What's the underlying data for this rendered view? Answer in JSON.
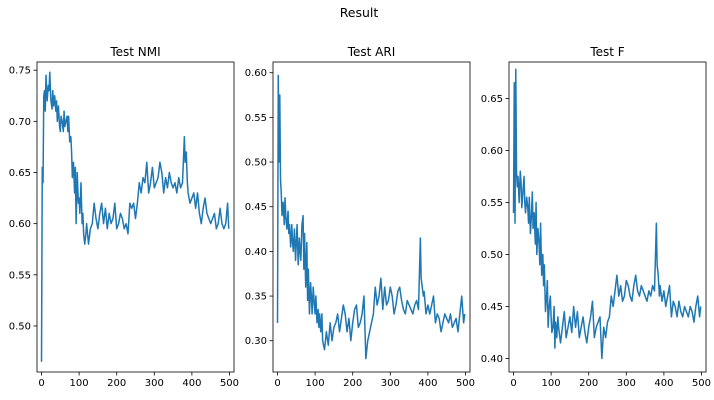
{
  "figure": {
    "suptitle": "Result"
  },
  "chart_data": [
    {
      "type": "line",
      "title": "Test NMI",
      "xlabel": "",
      "ylabel": "",
      "xlim": [
        -12,
        512
      ],
      "ylim": [
        0.455,
        0.758
      ],
      "xticks": [
        0,
        100,
        200,
        300,
        400,
        500
      ],
      "yticks": [
        0.5,
        0.55,
        0.6,
        0.65,
        0.7,
        0.75
      ],
      "ytick_decimals": 2,
      "grid": false,
      "legend": "none",
      "series": [
        {
          "color": "#1f77b4",
          "x": [
            0,
            2,
            4,
            6,
            8,
            10,
            12,
            15,
            18,
            20,
            22,
            25,
            28,
            30,
            32,
            35,
            38,
            40,
            42,
            45,
            48,
            50,
            52,
            55,
            58,
            60,
            62,
            65,
            68,
            70,
            72,
            75,
            78,
            80,
            82,
            85,
            88,
            90,
            92,
            95,
            98,
            100,
            102,
            105,
            108,
            110,
            112,
            115,
            118,
            120,
            125,
            130,
            135,
            140,
            145,
            150,
            155,
            160,
            165,
            170,
            175,
            180,
            185,
            190,
            195,
            200,
            205,
            210,
            215,
            220,
            225,
            230,
            235,
            240,
            245,
            250,
            255,
            260,
            265,
            270,
            275,
            280,
            285,
            290,
            295,
            300,
            305,
            310,
            315,
            320,
            325,
            330,
            335,
            340,
            345,
            350,
            355,
            360,
            365,
            370,
            375,
            380,
            382,
            385,
            388,
            390,
            395,
            400,
            405,
            410,
            415,
            420,
            425,
            430,
            435,
            440,
            445,
            450,
            455,
            460,
            465,
            470,
            475,
            480,
            485,
            490,
            495,
            498
          ],
          "y": [
            0.465,
            0.655,
            0.64,
            0.725,
            0.73,
            0.71,
            0.745,
            0.72,
            0.735,
            0.73,
            0.748,
            0.72,
            0.712,
            0.73,
            0.715,
            0.725,
            0.71,
            0.72,
            0.7,
            0.715,
            0.695,
            0.69,
            0.705,
            0.7,
            0.69,
            0.71,
            0.695,
            0.7,
            0.705,
            0.69,
            0.705,
            0.68,
            0.685,
            0.67,
            0.645,
            0.66,
            0.63,
            0.655,
            0.6,
            0.65,
            0.62,
            0.625,
            0.61,
            0.64,
            0.6,
            0.61,
            0.59,
            0.58,
            0.59,
            0.6,
            0.58,
            0.595,
            0.6,
            0.62,
            0.605,
            0.595,
            0.61,
            0.62,
            0.6,
            0.615,
            0.595,
            0.61,
            0.6,
            0.605,
            0.62,
            0.595,
            0.6,
            0.61,
            0.605,
            0.595,
            0.6,
            0.59,
            0.62,
            0.615,
            0.62,
            0.605,
            0.62,
            0.64,
            0.63,
            0.645,
            0.64,
            0.66,
            0.63,
            0.64,
            0.655,
            0.635,
            0.64,
            0.645,
            0.66,
            0.65,
            0.63,
            0.645,
            0.635,
            0.65,
            0.64,
            0.635,
            0.64,
            0.63,
            0.645,
            0.635,
            0.64,
            0.685,
            0.66,
            0.67,
            0.64,
            0.63,
            0.62,
            0.625,
            0.63,
            0.615,
            0.63,
            0.61,
            0.6,
            0.615,
            0.625,
            0.61,
            0.605,
            0.6,
            0.605,
            0.61,
            0.595,
            0.6,
            0.615,
            0.6,
            0.595,
            0.6,
            0.62,
            0.595
          ]
        }
      ]
    },
    {
      "type": "line",
      "title": "Test ARI",
      "xlabel": "",
      "ylabel": "",
      "xlim": [
        -12,
        512
      ],
      "ylim": [
        0.265,
        0.612
      ],
      "xticks": [
        0,
        100,
        200,
        300,
        400,
        500
      ],
      "yticks": [
        0.3,
        0.35,
        0.4,
        0.45,
        0.5,
        0.55,
        0.6
      ],
      "ytick_decimals": 2,
      "grid": false,
      "legend": "none",
      "series": [
        {
          "color": "#1f77b4",
          "x": [
            0,
            2,
            4,
            6,
            8,
            10,
            12,
            15,
            18,
            20,
            22,
            25,
            28,
            30,
            32,
            35,
            38,
            40,
            42,
            45,
            48,
            50,
            52,
            55,
            58,
            60,
            62,
            65,
            68,
            70,
            72,
            75,
            78,
            80,
            82,
            85,
            88,
            90,
            92,
            95,
            98,
            100,
            102,
            105,
            108,
            110,
            112,
            115,
            118,
            120,
            125,
            130,
            135,
            140,
            145,
            150,
            155,
            160,
            165,
            170,
            175,
            180,
            185,
            190,
            195,
            200,
            205,
            210,
            215,
            220,
            225,
            230,
            235,
            240,
            245,
            250,
            255,
            260,
            265,
            270,
            275,
            280,
            285,
            290,
            295,
            300,
            305,
            310,
            315,
            320,
            325,
            330,
            335,
            340,
            345,
            350,
            355,
            360,
            365,
            370,
            375,
            380,
            382,
            385,
            388,
            390,
            395,
            400,
            405,
            410,
            415,
            420,
            425,
            430,
            435,
            440,
            445,
            450,
            455,
            460,
            465,
            470,
            475,
            480,
            485,
            490,
            495,
            498
          ],
          "y": [
            0.32,
            0.597,
            0.5,
            0.575,
            0.48,
            0.465,
            0.44,
            0.455,
            0.43,
            0.46,
            0.44,
            0.425,
            0.445,
            0.42,
            0.43,
            0.405,
            0.43,
            0.41,
            0.4,
            0.425,
            0.39,
            0.41,
            0.43,
            0.385,
            0.415,
            0.4,
            0.39,
            0.43,
            0.44,
            0.38,
            0.42,
            0.36,
            0.41,
            0.345,
            0.38,
            0.33,
            0.365,
            0.35,
            0.33,
            0.36,
            0.34,
            0.33,
            0.35,
            0.32,
            0.335,
            0.315,
            0.33,
            0.31,
            0.33,
            0.3,
            0.29,
            0.31,
            0.295,
            0.32,
            0.3,
            0.315,
            0.32,
            0.33,
            0.31,
            0.325,
            0.34,
            0.33,
            0.31,
            0.325,
            0.3,
            0.32,
            0.335,
            0.34,
            0.315,
            0.32,
            0.33,
            0.35,
            0.28,
            0.3,
            0.31,
            0.32,
            0.33,
            0.36,
            0.34,
            0.35,
            0.37,
            0.335,
            0.36,
            0.34,
            0.345,
            0.36,
            0.35,
            0.33,
            0.34,
            0.355,
            0.36,
            0.345,
            0.335,
            0.33,
            0.345,
            0.34,
            0.335,
            0.33,
            0.34,
            0.345,
            0.335,
            0.415,
            0.37,
            0.36,
            0.35,
            0.355,
            0.33,
            0.34,
            0.33,
            0.34,
            0.35,
            0.32,
            0.33,
            0.325,
            0.31,
            0.32,
            0.33,
            0.325,
            0.32,
            0.33,
            0.315,
            0.32,
            0.325,
            0.31,
            0.33,
            0.35,
            0.32,
            0.33
          ]
        }
      ]
    },
    {
      "type": "line",
      "title": "Test F",
      "xlabel": "",
      "ylabel": "",
      "xlim": [
        -12,
        512
      ],
      "ylim": [
        0.387,
        0.685
      ],
      "xticks": [
        0,
        100,
        200,
        300,
        400,
        500
      ],
      "yticks": [
        0.4,
        0.45,
        0.5,
        0.55,
        0.6,
        0.65
      ],
      "ytick_decimals": 2,
      "grid": false,
      "legend": "none",
      "series": [
        {
          "color": "#1f77b4",
          "x": [
            0,
            2,
            4,
            6,
            8,
            10,
            12,
            15,
            18,
            20,
            22,
            25,
            28,
            30,
            32,
            35,
            38,
            40,
            42,
            45,
            48,
            50,
            52,
            55,
            58,
            60,
            62,
            65,
            68,
            70,
            72,
            75,
            78,
            80,
            82,
            85,
            88,
            90,
            92,
            95,
            98,
            100,
            102,
            105,
            108,
            110,
            112,
            115,
            118,
            120,
            125,
            130,
            135,
            140,
            145,
            150,
            155,
            160,
            165,
            170,
            175,
            180,
            185,
            190,
            195,
            200,
            205,
            210,
            215,
            220,
            225,
            230,
            235,
            240,
            245,
            250,
            255,
            260,
            265,
            270,
            275,
            280,
            285,
            290,
            295,
            300,
            305,
            310,
            315,
            320,
            325,
            330,
            335,
            340,
            345,
            350,
            355,
            360,
            365,
            370,
            375,
            380,
            382,
            385,
            388,
            390,
            395,
            400,
            405,
            410,
            415,
            420,
            425,
            430,
            435,
            440,
            445,
            450,
            455,
            460,
            465,
            470,
            475,
            480,
            485,
            490,
            495,
            498
          ],
          "y": [
            0.54,
            0.665,
            0.53,
            0.678,
            0.58,
            0.565,
            0.575,
            0.55,
            0.58,
            0.57,
            0.545,
            0.56,
            0.575,
            0.55,
            0.54,
            0.555,
            0.545,
            0.53,
            0.555,
            0.52,
            0.54,
            0.56,
            0.525,
            0.54,
            0.51,
            0.55,
            0.5,
            0.525,
            0.51,
            0.49,
            0.53,
            0.48,
            0.5,
            0.47,
            0.49,
            0.445,
            0.46,
            0.475,
            0.43,
            0.45,
            0.46,
            0.44,
            0.425,
            0.43,
            0.45,
            0.41,
            0.435,
            0.42,
            0.44,
            0.43,
            0.415,
            0.43,
            0.445,
            0.42,
            0.43,
            0.44,
            0.425,
            0.45,
            0.43,
            0.445,
            0.42,
            0.43,
            0.44,
            0.425,
            0.415,
            0.43,
            0.44,
            0.455,
            0.42,
            0.43,
            0.435,
            0.44,
            0.4,
            0.43,
            0.42,
            0.435,
            0.44,
            0.46,
            0.45,
            0.465,
            0.48,
            0.46,
            0.47,
            0.455,
            0.46,
            0.475,
            0.47,
            0.46,
            0.455,
            0.47,
            0.48,
            0.465,
            0.46,
            0.47,
            0.465,
            0.46,
            0.455,
            0.465,
            0.46,
            0.47,
            0.465,
            0.53,
            0.49,
            0.48,
            0.46,
            0.47,
            0.455,
            0.465,
            0.45,
            0.46,
            0.47,
            0.44,
            0.455,
            0.45,
            0.44,
            0.455,
            0.445,
            0.44,
            0.45,
            0.445,
            0.44,
            0.45,
            0.445,
            0.435,
            0.45,
            0.46,
            0.44,
            0.45
          ]
        }
      ]
    }
  ]
}
